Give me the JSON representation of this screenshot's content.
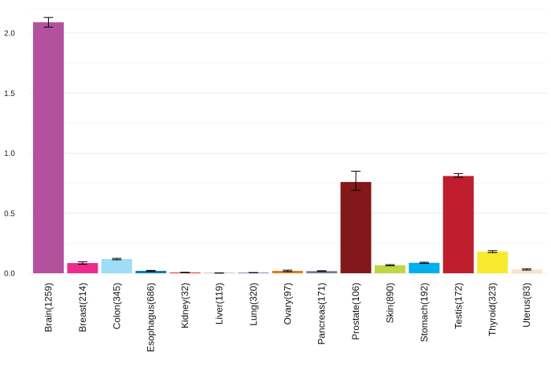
{
  "chart_data": {
    "type": "bar",
    "title": "",
    "xlabel": "",
    "ylabel": "",
    "ylim": [
      0,
      2.2
    ],
    "yticks": [
      "0.0",
      "0.5",
      "1.0",
      "1.5",
      "2.0"
    ],
    "grid": true,
    "categories": [
      "Brain(1259)",
      "Breast(214)",
      "Colon(345)",
      "Esophagus(686)",
      "Kidney(32)",
      "Liver(119)",
      "Lung(320)",
      "Ovary(97)",
      "Pancreas(171)",
      "Prostate(106)",
      "Skin(890)",
      "Stomach(192)",
      "Testis(172)",
      "Thyroid(323)",
      "Uterus(83)"
    ],
    "values": [
      2.09,
      0.085,
      0.118,
      0.02,
      0.006,
      0.002,
      0.005,
      0.02,
      0.018,
      0.76,
      0.067,
      0.087,
      0.81,
      0.18,
      0.032
    ],
    "error_low": [
      2.05,
      0.075,
      0.112,
      0.016,
      0.004,
      0.001,
      0.004,
      0.014,
      0.015,
      0.69,
      0.062,
      0.082,
      0.8,
      0.172,
      0.026
    ],
    "error_high": [
      2.13,
      0.095,
      0.124,
      0.024,
      0.008,
      0.003,
      0.006,
      0.026,
      0.021,
      0.85,
      0.072,
      0.092,
      0.83,
      0.188,
      0.038
    ],
    "colors": [
      "#b3519e",
      "#ee2a8f",
      "#9fdcf7",
      "#0a7db6",
      "#ee2a2a",
      "#cccccc",
      "#a385c8",
      "#dd7d22",
      "#6d7ba2",
      "#82181a",
      "#bfd745",
      "#00aeec",
      "#be1e2d",
      "#f7ea2e",
      "#fae3c8"
    ]
  }
}
